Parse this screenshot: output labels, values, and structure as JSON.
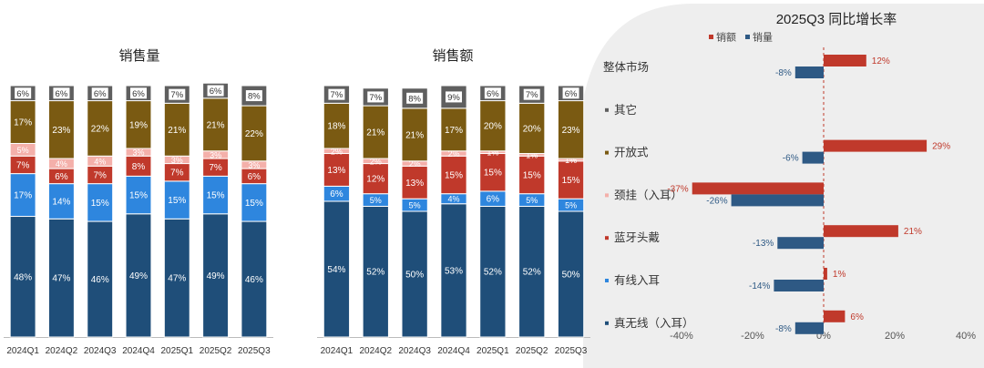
{
  "colors": {
    "tws": "#1f4e79",
    "wired": "#2e86de",
    "headband": "#c0392b",
    "neck": "#f4b0aa",
    "open": "#7a5a12",
    "other": "#5f5f5f",
    "sales_amount_bar": "#c0392b",
    "sales_volume_bar": "#2e5984",
    "panel_bg": "#eeeeee"
  },
  "chart_data": [
    {
      "type": "bar",
      "stacked": true,
      "title": "销售量",
      "categories": [
        "2024Q1",
        "2024Q2",
        "2024Q3",
        "2024Q4",
        "2025Q1",
        "2025Q2",
        "2025Q3"
      ],
      "category_labels": [
        "2024Q1",
        "2024Q2",
        "2024Q3",
        "2024Q4",
        "2025Q1",
        "2025Q2",
        "2025Q3"
      ],
      "ylim": [
        0,
        100
      ],
      "series": [
        {
          "key": "tws",
          "values": [
            48,
            47,
            46,
            49,
            47,
            49,
            46
          ],
          "labels": [
            "48%",
            "47%",
            "46%",
            "49%",
            "47%",
            "49%",
            "46%"
          ]
        },
        {
          "key": "wired",
          "values": [
            17,
            14,
            15,
            15,
            15,
            15,
            15
          ],
          "labels": [
            "17%",
            "14%",
            "15%",
            "15%",
            "15%",
            "15%",
            "15%"
          ]
        },
        {
          "key": "headband",
          "values": [
            7,
            6,
            7,
            8,
            7,
            7,
            6
          ],
          "labels": [
            "7%",
            "6%",
            "7%",
            "8%",
            "7%",
            "7%",
            "6%"
          ]
        },
        {
          "key": "neck",
          "values": [
            5,
            4,
            4,
            3,
            3,
            3,
            3
          ],
          "labels": [
            "5%",
            "4%",
            "4%",
            "3%",
            "3%",
            "3%",
            "3%"
          ]
        },
        {
          "key": "open",
          "values": [
            17,
            23,
            22,
            19,
            21,
            21,
            22
          ],
          "labels": [
            "17%",
            "23%",
            "22%",
            "19%",
            "21%",
            "21%",
            "22%"
          ]
        },
        {
          "key": "other",
          "values": [
            6,
            6,
            6,
            6,
            7,
            6,
            8
          ],
          "labels": [
            "6%",
            "6%",
            "6%",
            "6%",
            "7%",
            "6%",
            "8%"
          ]
        }
      ]
    },
    {
      "type": "bar",
      "stacked": true,
      "title": "销售额",
      "categories": [
        "2024Q1",
        "2024Q2",
        "2024Q3",
        "2024Q4",
        "2025Q1",
        "2025Q2",
        "2025Q3"
      ],
      "category_labels": [
        "2024Q1",
        "2024Q2",
        "2024Q3",
        "2024Q4",
        "2025Q1",
        "2025Q2",
        "2025Q3"
      ],
      "ylim": [
        0,
        100
      ],
      "series": [
        {
          "key": "tws",
          "values": [
            54,
            52,
            50,
            53,
            52,
            52,
            50
          ],
          "labels": [
            "54%",
            "52%",
            "50%",
            "53%",
            "52%",
            "52%",
            "50%"
          ]
        },
        {
          "key": "wired",
          "values": [
            6,
            5,
            5,
            4,
            6,
            5,
            5
          ],
          "labels": [
            "6%",
            "5%",
            "5%",
            "4%",
            "6%",
            "5%",
            "5%"
          ]
        },
        {
          "key": "headband",
          "values": [
            13,
            12,
            13,
            15,
            15,
            15,
            15
          ],
          "labels": [
            "13%",
            "12%",
            "13%",
            "15%",
            "15%",
            "15%",
            "15%"
          ]
        },
        {
          "key": "neck",
          "values": [
            2,
            2,
            2,
            2,
            1,
            1,
            1
          ],
          "labels": [
            "2%",
            "2%",
            "2%",
            "2%",
            "1%",
            "1%",
            "1%"
          ]
        },
        {
          "key": "open",
          "values": [
            18,
            21,
            21,
            17,
            20,
            20,
            23
          ],
          "labels": [
            "18%",
            "21%",
            "21%",
            "17%",
            "20%",
            "20%",
            "23%"
          ]
        },
        {
          "key": "other",
          "values": [
            7,
            7,
            8,
            9,
            6,
            7,
            6
          ],
          "labels": [
            "7%",
            "7%",
            "8%",
            "9%",
            "6%",
            "7%",
            "6%"
          ]
        }
      ]
    },
    {
      "type": "bar",
      "orientation": "horizontal",
      "title": "2025Q3 同比增长率",
      "legend": {
        "position": "top",
        "entries": [
          "销额",
          "销量"
        ]
      },
      "categories": [
        "整体市场",
        "其它",
        "开放式",
        "颈挂（入耳）",
        "蓝牙头戴",
        "有线入耳",
        "真无线（入耳）"
      ],
      "category_markers": [
        false,
        true,
        true,
        true,
        true,
        true,
        true
      ],
      "xlim": [
        -40,
        40
      ],
      "x_ticks": [
        "-40%",
        "-20%",
        "0%",
        "20%",
        "40%"
      ],
      "series": [
        {
          "name": "销额",
          "values": [
            12,
            null,
            29,
            -37,
            21,
            1,
            6
          ],
          "labels": [
            "12%",
            "",
            "29%",
            "-37%",
            "21%",
            "1%",
            "6%"
          ]
        },
        {
          "name": "销量",
          "values": [
            -8,
            null,
            -6,
            -26,
            -13,
            -14,
            -8
          ],
          "labels": [
            "-8%",
            "",
            "-6%",
            "-26%",
            "-13%",
            "-14%",
            "-8%"
          ]
        }
      ]
    }
  ]
}
